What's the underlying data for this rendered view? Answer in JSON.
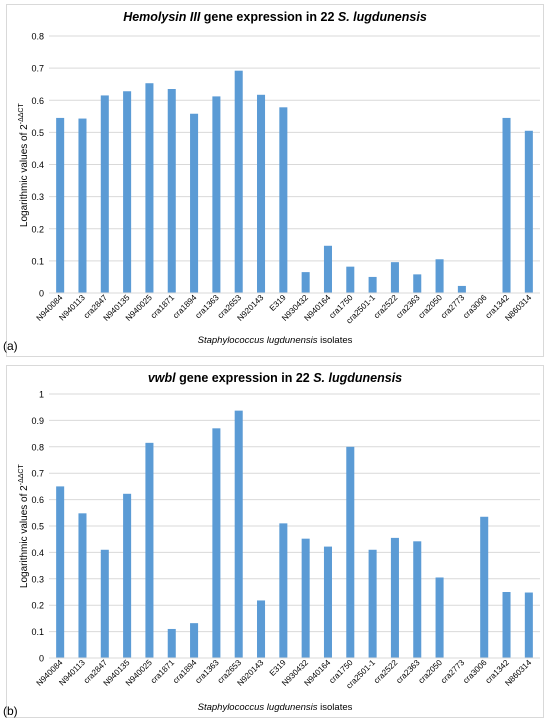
{
  "chart_data": [
    {
      "panel": "(a)",
      "type": "bar",
      "title": {
        "gene": "Hemolysin III",
        "middle": " gene expression in 22 ",
        "organism": "S. lugdunensis"
      },
      "ylabel": {
        "text": "Logarithmic values of 2",
        "sup": "-ΔΔCT"
      },
      "xlabel": {
        "organism": "Staphylococcus lugdunensis",
        "rest": " isolates"
      },
      "ylim": [
        0,
        0.8
      ],
      "yticks": [
        "0",
        "0.1",
        "0.2",
        "0.3",
        "0.4",
        "0.5",
        "0.6",
        "0.7",
        "0.8"
      ],
      "grid": true,
      "color": "#5b9bd5",
      "categories": [
        "N940084",
        "N940113",
        "cra2847",
        "N940135",
        "N940025",
        "cra1871",
        "cra1894",
        "cra1363",
        "cra2653",
        "N920143",
        "E319",
        "N930432",
        "N940164",
        "cra1750",
        "cra2501-1",
        "cra2522",
        "cra2363",
        "cra2050",
        "cra2773",
        "cra3006",
        "cra1342",
        "N860314"
      ],
      "values": [
        0.545,
        0.543,
        0.615,
        0.628,
        0.653,
        0.635,
        0.558,
        0.612,
        0.692,
        0.617,
        0.578,
        0.065,
        0.147,
        0.082,
        0.05,
        0.096,
        0.058,
        0.105,
        0.022,
        0,
        0.545,
        0.505
      ]
    },
    {
      "panel": "(b)",
      "type": "bar",
      "title": {
        "gene": "vwbl",
        "middle": " gene expression in 22 ",
        "organism": "S. lugdunensis"
      },
      "ylabel": {
        "text": "Logarithmic values of 2",
        "sup": "-ΔΔCT"
      },
      "xlabel": {
        "organism": "Staphylococcus lugdunensis",
        "rest": " isolates"
      },
      "ylim": [
        0,
        1
      ],
      "yticks": [
        "0",
        "0.1",
        "0.2",
        "0.3",
        "0.4",
        "0.5",
        "0.6",
        "0.7",
        "0.8",
        "0.9",
        "1"
      ],
      "grid": true,
      "color": "#5b9bd5",
      "categories": [
        "N940084",
        "N940113",
        "cra2847",
        "N940135",
        "N940025",
        "cra1871",
        "cra1894",
        "cra1363",
        "cra2653",
        "N920143",
        "E319",
        "N930432",
        "N940164",
        "cra1750",
        "cra2501-1",
        "cra2522",
        "cra2363",
        "cra2050",
        "cra2773",
        "cra3006",
        "cra1342",
        "N860314"
      ],
      "values": [
        0.65,
        0.548,
        0.41,
        0.622,
        0.815,
        0.11,
        0.132,
        0.87,
        0.937,
        0.218,
        0.51,
        0.452,
        0.422,
        0.8,
        0.41,
        0.455,
        0.442,
        0.305,
        0,
        0.535,
        0.25,
        0.248
      ]
    }
  ]
}
